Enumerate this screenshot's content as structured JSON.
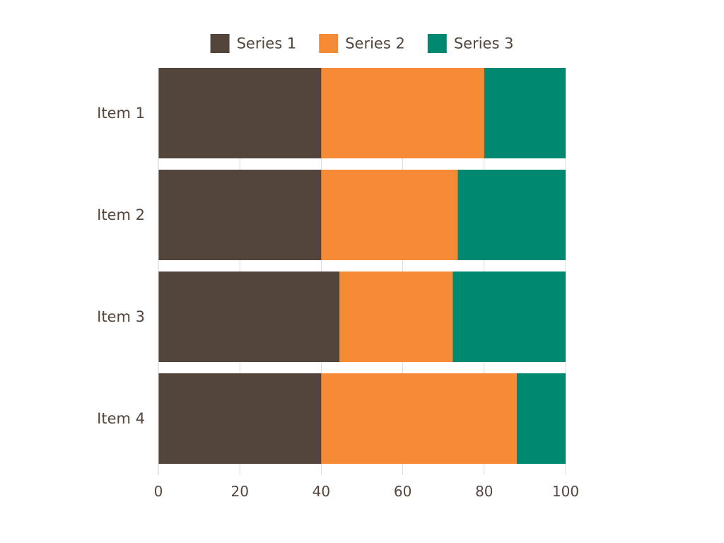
{
  "chart_data": {
    "type": "bar",
    "orientation": "horizontal",
    "stacked": true,
    "categories": [
      "Item 1",
      "Item 2",
      "Item 3",
      "Item 4"
    ],
    "series": [
      {
        "name": "Series 1",
        "color": "#54453c",
        "values": [
          40,
          40,
          44.5,
          40
        ]
      },
      {
        "name": "Series 2",
        "color": "#f58a35",
        "values": [
          40,
          33.5,
          27.8,
          48
        ]
      },
      {
        "name": "Series 3",
        "color": "#008971",
        "values": [
          20,
          26.5,
          27.7,
          12
        ]
      }
    ],
    "xlim": [
      0,
      100
    ],
    "xticks": [
      "0",
      "20",
      "40",
      "60",
      "80",
      "100"
    ],
    "grid": true,
    "legend_position": "top",
    "title": "",
    "xlabel": "",
    "ylabel": ""
  }
}
